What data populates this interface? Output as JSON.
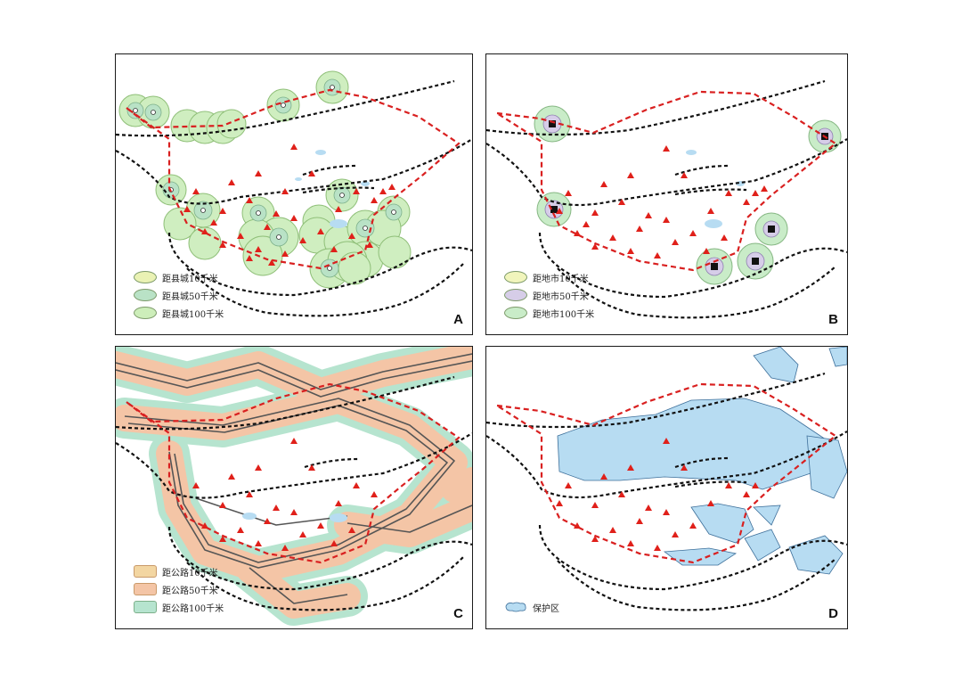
{
  "panels": [
    {
      "letter": "A",
      "legend": [
        {
          "label": "距县城10千米",
          "color": "#eaf2b4"
        },
        {
          "label": "距县城50千米",
          "color": "#b9e2c6"
        },
        {
          "label": "距县城100千米",
          "color": "#cdeeba"
        }
      ]
    },
    {
      "letter": "B",
      "legend": [
        {
          "label": "距地市10千米",
          "color": "#f1f5bc"
        },
        {
          "label": "距地市50千米",
          "color": "#d6cde8"
        },
        {
          "label": "距地市100千米",
          "color": "#c9ecc8"
        }
      ]
    },
    {
      "letter": "C",
      "legend": [
        {
          "label": "距公路10千米",
          "color": "#f3d6a2"
        },
        {
          "label": "距公路50千米",
          "color": "#f4c5a6"
        },
        {
          "label": "距公路100千米",
          "color": "#b6e4cf"
        }
      ]
    },
    {
      "letter": "D",
      "legend": [
        {
          "label": "保护区",
          "color": "#b7dcf2"
        }
      ]
    }
  ],
  "colors": {
    "boundary_red": "#d92020",
    "dashed_black": "#111111",
    "triangle": "#e0201a",
    "road": "#555555",
    "buffer_green": "#cfeec0",
    "buffer_orange": "#f4c5a6",
    "buffer_teal": "#b6e4cf",
    "protected_area": "#b7dcf2"
  },
  "icons": [
    "county-town-marker",
    "prefecture-city-marker",
    "triangle-site-marker"
  ]
}
